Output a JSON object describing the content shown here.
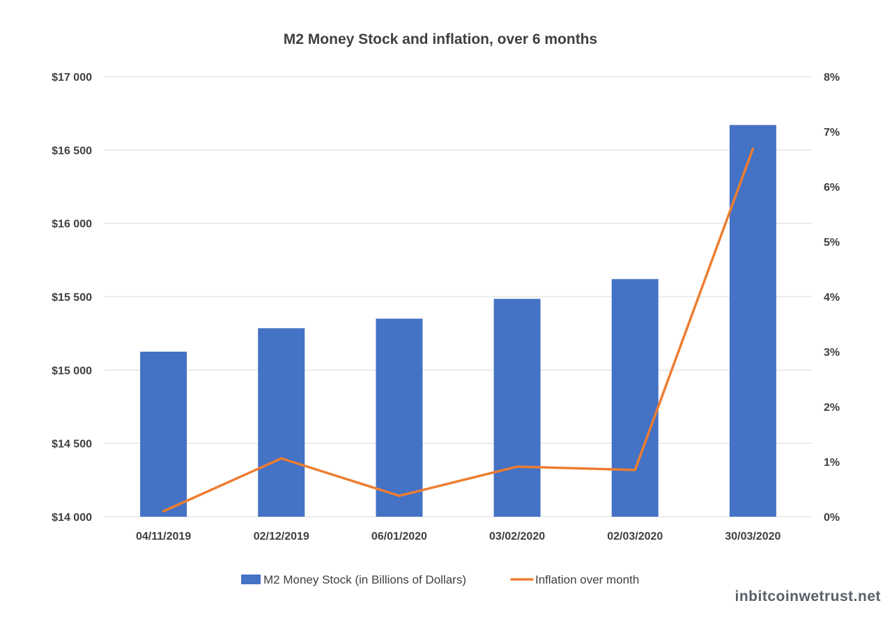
{
  "watermark": "inbitcoinwetrust.net",
  "colors": {
    "bar": "#4472C4",
    "line": "#ED7D31",
    "grid": "#D9D9D9",
    "text": "#404040"
  },
  "chart_data": {
    "type": "bar",
    "title": "M2 Money Stock and inflation, over 6 months",
    "categories": [
      "04/11/2019",
      "02/12/2019",
      "06/01/2020",
      "03/02/2020",
      "02/03/2020",
      "30/03/2020"
    ],
    "series": [
      {
        "name": "M2 Money Stock (in Billions of Dollars)",
        "type": "bar",
        "axis": "left",
        "values": [
          15125,
          15285,
          15350,
          15485,
          15620,
          16670
        ]
      },
      {
        "name": "Inflation over month",
        "type": "line",
        "axis": "right",
        "values": [
          0.1,
          1.06,
          0.38,
          0.91,
          0.85,
          6.69
        ]
      }
    ],
    "y_left": {
      "min": 14000,
      "max": 17000,
      "ticks": [
        14000,
        14500,
        15000,
        15500,
        16000,
        16500,
        17000
      ],
      "tick_labels": [
        "$14 000",
        "$14 500",
        "$15 000",
        "$15 500",
        "$16 000",
        "$16 500",
        "$17 000"
      ]
    },
    "y_right": {
      "min": 0,
      "max": 8,
      "ticks": [
        0,
        1,
        2,
        3,
        4,
        5,
        6,
        7,
        8
      ],
      "tick_labels": [
        "0%",
        "1%",
        "2%",
        "3%",
        "4%",
        "5%",
        "6%",
        "7%",
        "8%"
      ]
    },
    "grid": true,
    "legend_position": "bottom"
  }
}
